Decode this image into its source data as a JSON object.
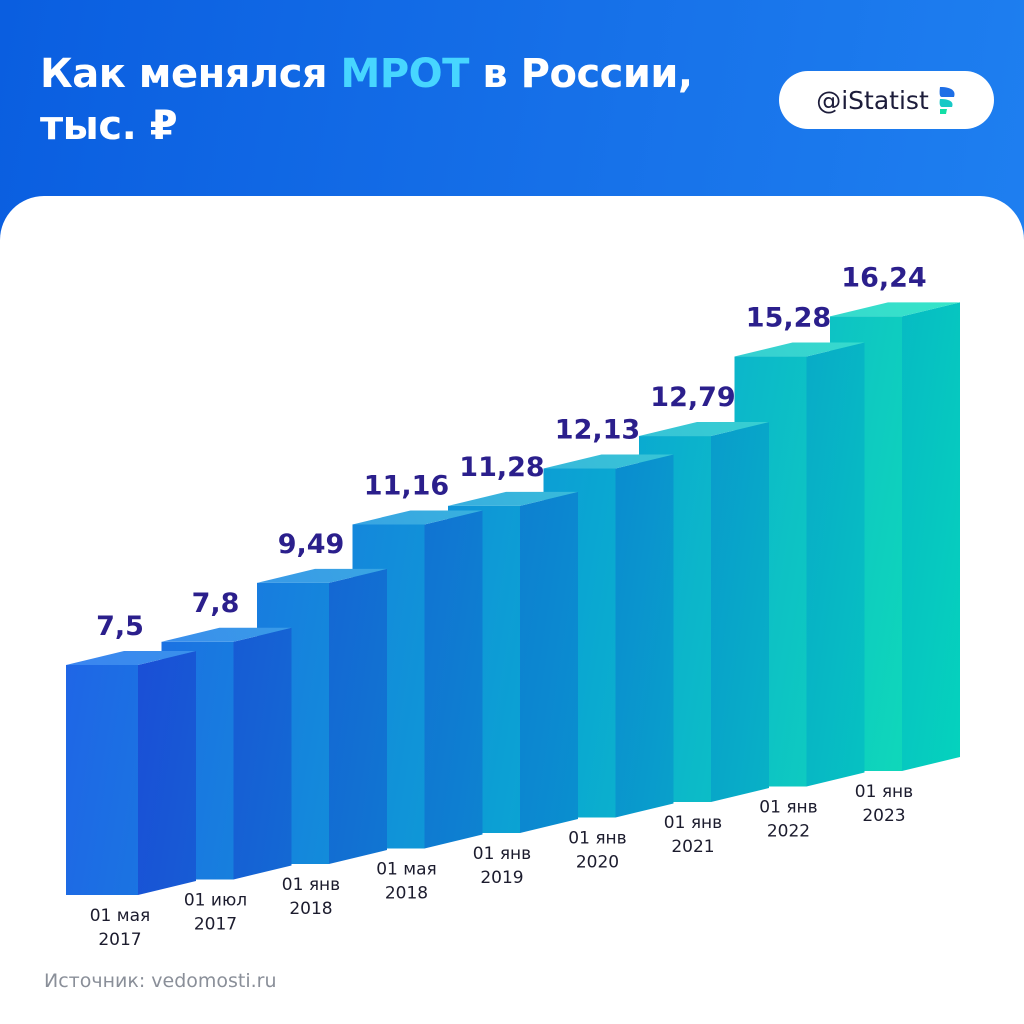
{
  "header": {
    "title_part1": "Как менялся",
    "title_accent": "МРОТ",
    "title_part2": "в России,",
    "title_line2": "тыс. ₽",
    "brand": "@iStatist"
  },
  "source": "Источник: vedomosti.ru",
  "chart_data": {
    "type": "bar",
    "style": "3d-columns",
    "title": "Как менялся МРОТ в России, тыс. ₽",
    "unit": "тыс. ₽",
    "categories": [
      [
        "01 мая",
        "2017"
      ],
      [
        "01 июл",
        "2017"
      ],
      [
        "01 янв",
        "2018"
      ],
      [
        "01 мая",
        "2018"
      ],
      [
        "01 янв",
        "2019"
      ],
      [
        "01 янв",
        "2020"
      ],
      [
        "01 янв",
        "2021"
      ],
      [
        "01 янв",
        "2022"
      ],
      [
        "01 янв",
        "2023"
      ]
    ],
    "values": [
      7.5,
      7.8,
      9.49,
      11.16,
      11.28,
      12.13,
      12.79,
      15.28,
      16.24
    ],
    "labels": [
      "7,5",
      "7,8",
      "9,49",
      "11,16",
      "11,28",
      "12,13",
      "12,79",
      "15,28",
      "16,24"
    ],
    "colors": {
      "start": "#1f66e6",
      "end": "#10e0b6",
      "label": "#2b1f8c"
    }
  }
}
